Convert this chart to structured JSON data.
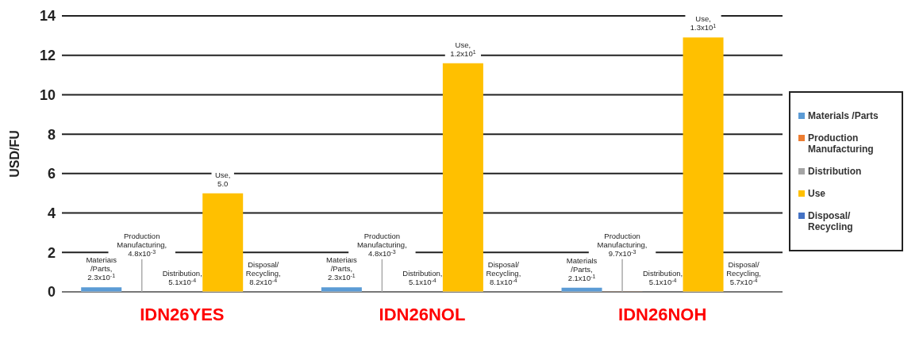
{
  "chart_data": {
    "type": "bar",
    "ylabel": "USD/FU",
    "categories": [
      "IDN26YES",
      "IDN26NOL",
      "IDN26NOH"
    ],
    "ylim": [
      0,
      14
    ],
    "yticks": [
      0,
      2,
      4,
      6,
      8,
      10,
      12,
      14
    ],
    "grid": "y",
    "legend": "right",
    "series": [
      {
        "name": "Materials /Parts",
        "color": "#5b9bd5",
        "values": [
          0.23,
          0.23,
          0.21
        ],
        "value_labels": [
          "Materials\n/Parts,\n2.3x10$^{-1}$",
          "Materials\n/Parts,\n2.3x10$^{-1}$",
          "Materials\n/Parts,\n2.1x10$^{-1}$"
        ]
      },
      {
        "name": "Production Manufacturing",
        "color": "#ed7d31",
        "values": [
          0.0048,
          0.0048,
          0.0097
        ],
        "value_labels": [
          "Production\nManufacturing,\n4.8x10$^{-3}$",
          "Production\nManufacturing,\n4.8x10$^{-3}$",
          "Production\nManufacturing,\n9.7x10$^{-3}$"
        ]
      },
      {
        "name": "Distribution",
        "color": "#a5a5a5",
        "values": [
          0.00051,
          0.00051,
          0.00051
        ],
        "value_labels": [
          "Distribution,\n5.1x10$^{-4}$",
          "Distribution,\n5.1x10$^{-4}$",
          "Distribution,\n5.1x10$^{-4}$"
        ]
      },
      {
        "name": "Use",
        "color": "#ffc000",
        "values": [
          5.0,
          11.6,
          12.9
        ],
        "value_labels": [
          "Use,\n5.0",
          "Use,\n1.2x10$^{1}$",
          "Use,\n1.3x10$^{1}$"
        ]
      },
      {
        "name": "Disposal/ Recycling",
        "color": "#4472c4",
        "values": [
          0.00082,
          0.00081,
          0.00057
        ],
        "value_labels": [
          "Disposal/\nRecycling,\n8.2x10$^{-4}$",
          "Disposal/\nRecycling,\n8.1x10$^{-4}$",
          "Disposal/\nRecycling,\n5.7x10$^{-4}$"
        ]
      }
    ]
  }
}
